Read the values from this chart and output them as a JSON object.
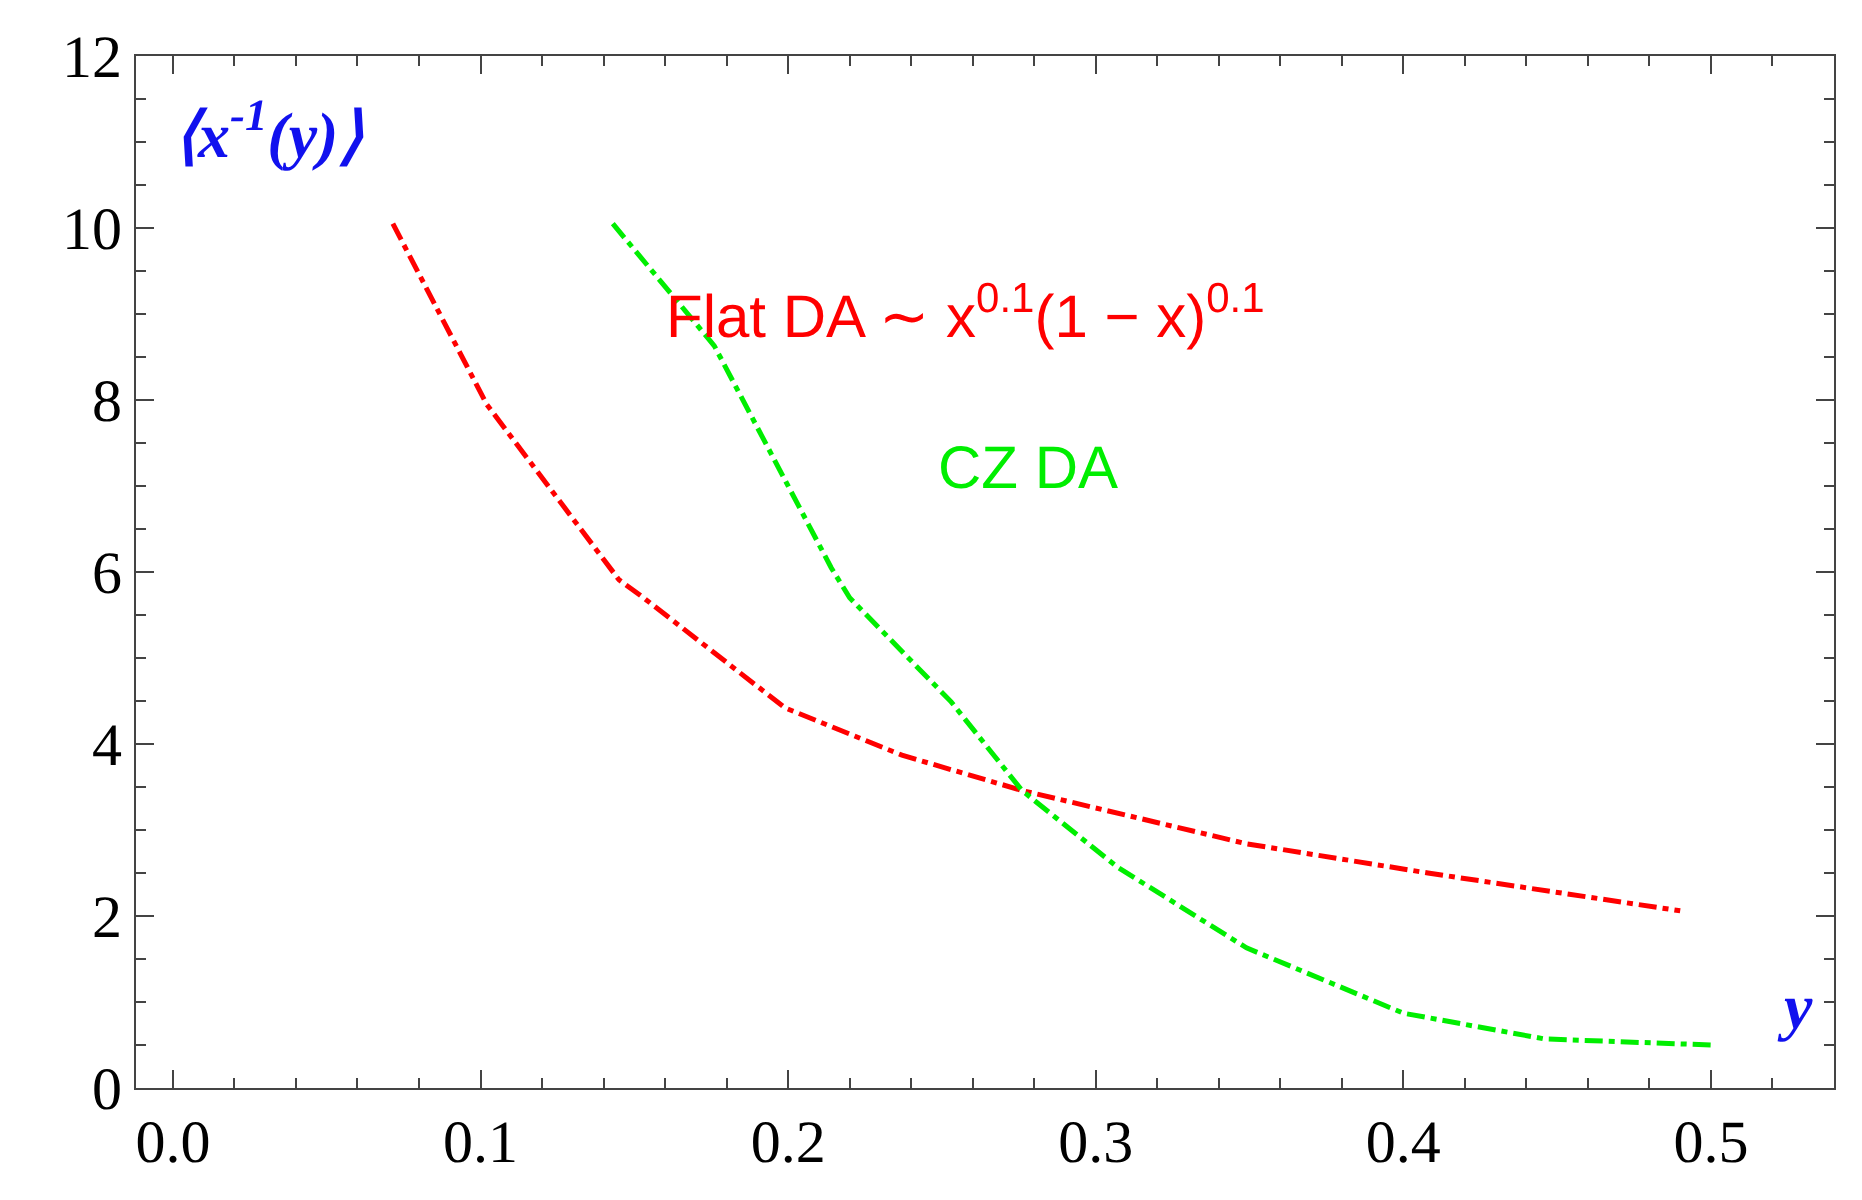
{
  "chart_data": {
    "type": "line",
    "xlabel": "y",
    "ylabel": "⟨x$^{-1}$(y)⟩",
    "xlim": [
      -0.012,
      0.54
    ],
    "xticks": [
      {
        "value": 0,
        "label": "0.0"
      },
      0.1,
      0.2,
      0.3,
      0.4,
      0.5
    ],
    "ylim": [
      0,
      12
    ],
    "yticks": [
      0,
      2,
      4,
      6,
      8,
      10,
      12
    ],
    "legend": false,
    "marker": "none",
    "series": [
      {
        "name": "Flat DA ∼ x$^{0.1}$(1 − x)$^{0.1}$",
        "color": "#ff0000",
        "line_style": "dashed",
        "x": [
          0.0715,
          0.102,
          0.145,
          0.153,
          0.199,
          0.237,
          0.276,
          0.349,
          0.408,
          0.49
        ],
        "values": [
          10.05,
          7.95,
          5.91,
          5.7,
          4.42,
          3.87,
          3.46,
          2.84,
          2.5,
          2.06
        ]
      },
      {
        "name": "CZ DA",
        "color": "#00ee00",
        "line_style": "dashed",
        "x": [
          0.143,
          0.176,
          0.214,
          0.22,
          0.253,
          0.276,
          0.307,
          0.349,
          0.4,
          0.446,
          0.5
        ],
        "values": [
          10.05,
          8.63,
          6.05,
          5.7,
          4.49,
          3.46,
          2.57,
          1.63,
          0.87,
          0.57,
          0.5
        ]
      }
    ]
  }
}
